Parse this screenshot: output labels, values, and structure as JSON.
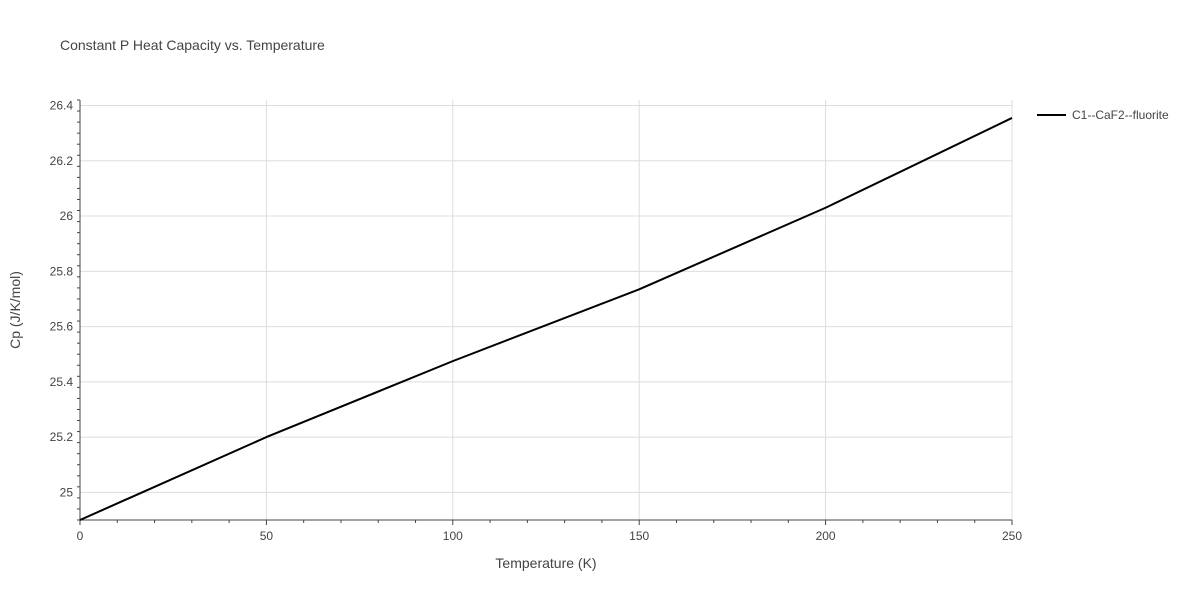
{
  "chart_data": {
    "type": "line",
    "title": "Constant P Heat Capacity vs. Temperature",
    "xlabel": "Temperature (K)",
    "ylabel": "Cp (J/K/mol)",
    "xlim": [
      0,
      250
    ],
    "ylim": [
      24.9,
      26.42
    ],
    "x_ticks": [
      0,
      50,
      100,
      150,
      200,
      250
    ],
    "x_tick_labels": [
      "0",
      "50",
      "100",
      "150",
      "200",
      "250"
    ],
    "y_ticks": [
      25,
      25.2,
      25.4,
      25.6,
      25.8,
      26,
      26.2,
      26.4
    ],
    "y_tick_labels": [
      "25",
      "25.2",
      "25.4",
      "25.6",
      "25.8",
      "26",
      "26.2",
      "26.4"
    ],
    "grid": true,
    "legend_position": "top-right",
    "series": [
      {
        "name": "C1--CaF2--fluorite",
        "color": "#000000",
        "x": [
          0,
          50,
          100,
          150,
          200,
          250
        ],
        "y": [
          24.9,
          25.2,
          25.475,
          25.735,
          26.03,
          26.355
        ]
      }
    ]
  },
  "colors": {
    "text": "#444444",
    "title": "#444444",
    "grid": "#dddddd",
    "axis": "#444444"
  }
}
